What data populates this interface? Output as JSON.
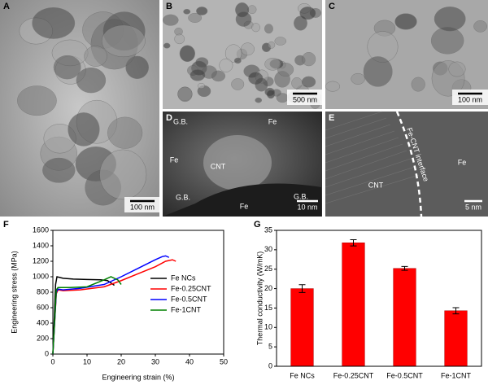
{
  "images": [
    {
      "label": "A",
      "scale_bar": "100 nm"
    },
    {
      "label": "B",
      "scale_bar": "500 nm"
    },
    {
      "label": "C",
      "scale_bar": "100 nm"
    },
    {
      "label": "D",
      "scale_bar": "10 nm",
      "annotations": [
        "G.B.",
        "Fe",
        "Fe",
        "CNT",
        "G.B.",
        "Fe",
        "G.B."
      ]
    },
    {
      "label": "E",
      "scale_bar": "5 nm",
      "annotations": [
        "Fe-CNT interface",
        "CNT",
        "Fe"
      ]
    }
  ],
  "chart_data": [
    {
      "type": "line",
      "panel": "F",
      "x_label": "Engineering strain (%)",
      "y_label": "Engineering stress (MPa)",
      "xlim": [
        0,
        50
      ],
      "xticks": [
        0,
        10,
        20,
        30,
        40,
        50
      ],
      "ylim": [
        0,
        1600
      ],
      "yticks": [
        0,
        200,
        400,
        600,
        800,
        1000,
        1200,
        1400,
        1600
      ],
      "legend": "right",
      "series": [
        {
          "name": "Fe NCs",
          "color": "#000000",
          "x": [
            0,
            0.8,
            1.2,
            3,
            6,
            10,
            14,
            16,
            17,
            18
          ],
          "values": [
            0,
            900,
            1000,
            980,
            970,
            965,
            960,
            950,
            920,
            890
          ]
        },
        {
          "name": "Fe-0.25CNT",
          "color": "#ff0000",
          "x": [
            0,
            1,
            1.5,
            3,
            8,
            15,
            20,
            25,
            30,
            33,
            35,
            36
          ],
          "values": [
            0,
            780,
            830,
            820,
            830,
            870,
            950,
            1040,
            1130,
            1200,
            1220,
            1200
          ]
        },
        {
          "name": "Fe-0.5CNT",
          "color": "#0000ff",
          "x": [
            0,
            1,
            1.5,
            3,
            8,
            15,
            20,
            25,
            30,
            32,
            33,
            34
          ],
          "values": [
            0,
            800,
            840,
            830,
            850,
            900,
            1000,
            1110,
            1220,
            1260,
            1270,
            1250
          ]
        },
        {
          "name": "Fe-1CNT",
          "color": "#008000",
          "x": [
            0,
            1,
            1.5,
            5,
            10,
            15,
            17,
            19,
            20
          ],
          "values": [
            0,
            830,
            860,
            860,
            870,
            960,
            1000,
            960,
            900
          ]
        }
      ]
    },
    {
      "type": "bar",
      "panel": "G",
      "y_label": "Thermal conductivity (W/mK)",
      "categories": [
        "Fe NCs",
        "Fe-0.25CNT",
        "Fe-0.5CNT",
        "Fe-1CNT"
      ],
      "values": [
        20,
        31.8,
        25.2,
        14.3
      ],
      "errors": [
        1,
        0.8,
        0.5,
        0.8
      ],
      "color": "#ff0000",
      "ylim": [
        0,
        35
      ],
      "yticks": [
        0,
        5,
        10,
        15,
        20,
        25,
        30,
        35
      ]
    }
  ]
}
